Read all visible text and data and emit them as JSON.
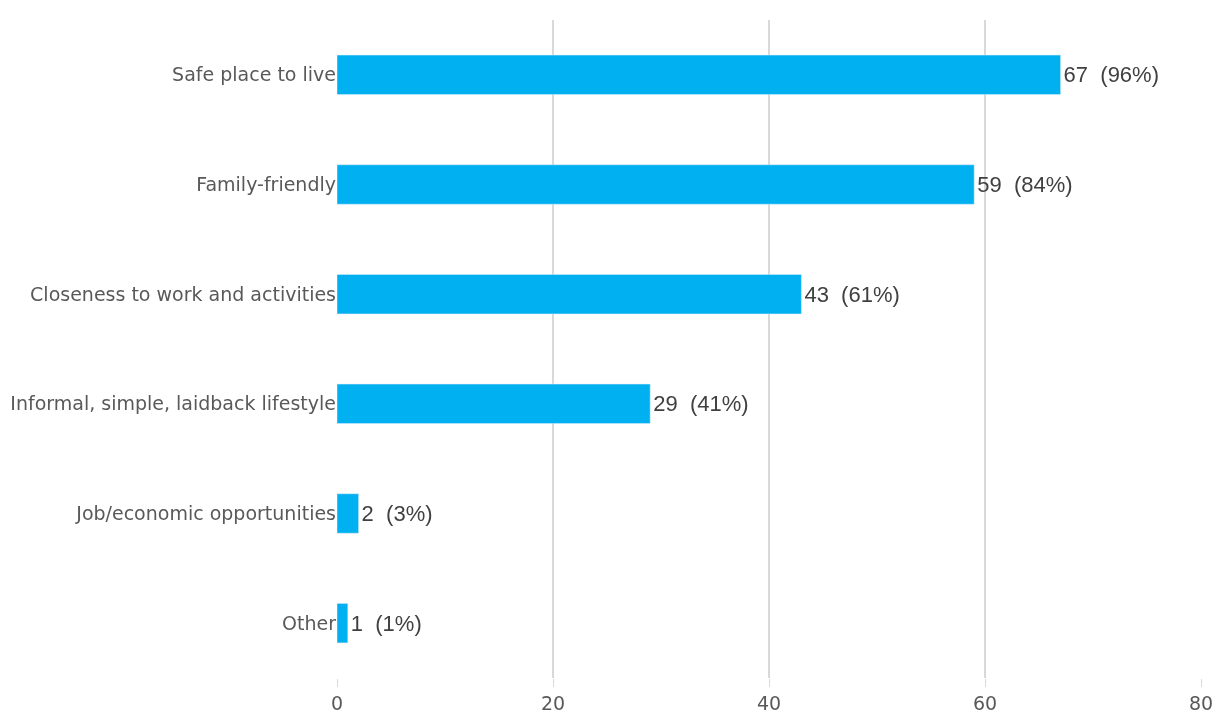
{
  "chart_data": {
    "type": "bar",
    "orientation": "horizontal",
    "categories": [
      "Safe place to live",
      "Family-friendly",
      "Closeness to work and activities",
      "Informal, simple, laidback lifestyle",
      "Job/economic opportunities",
      "Other"
    ],
    "values": [
      67,
      59,
      43,
      29,
      2,
      1
    ],
    "value_labels": [
      "67  (96%)",
      "59  (84%)",
      "43  (61%)",
      "29  (41%)",
      "2  (3%)",
      "1  (1%)"
    ],
    "color": "#00b0f0",
    "xlim": [
      0,
      80
    ],
    "xticks": [
      0,
      20,
      40,
      60,
      80
    ],
    "grid": "x",
    "legend": false
  }
}
